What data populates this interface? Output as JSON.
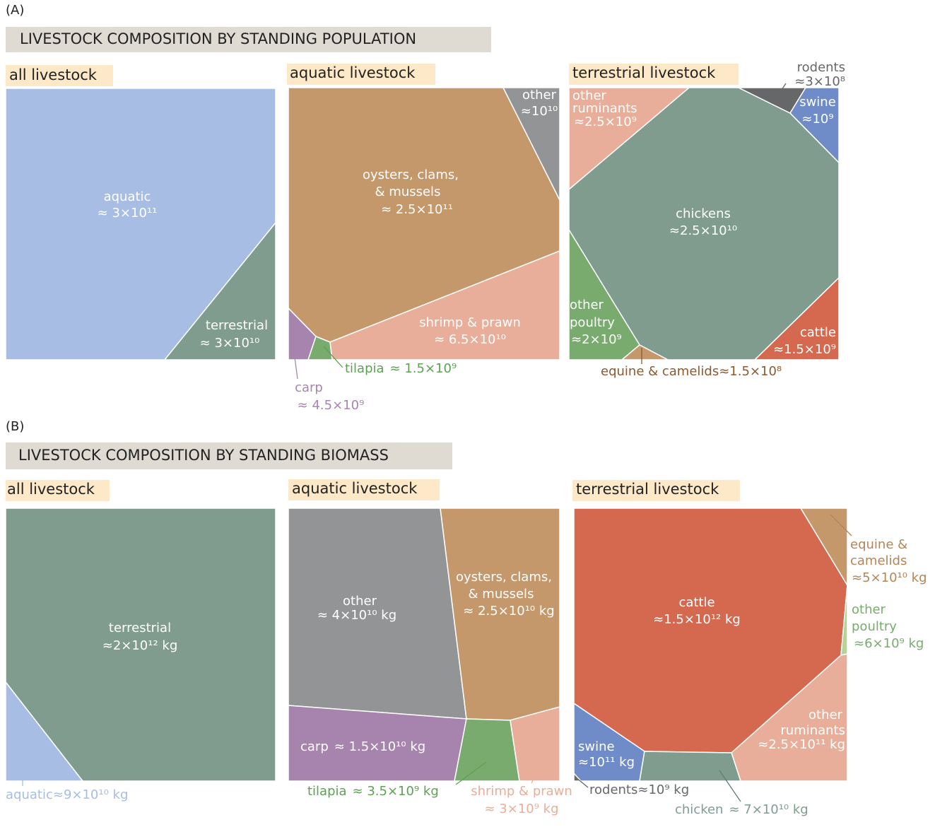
{
  "panels": [
    {
      "letter": "(A)",
      "title": "LIVESTOCK COMPOSITION BY STANDING POPULATION",
      "groups": [
        {
          "title": "all livestock",
          "cells": [
            {
              "name": [
                "aquatic"
              ],
              "value": "≈ 3×10¹¹"
            },
            {
              "name": [
                "terrestrial"
              ],
              "value": "≈ 3×10¹⁰"
            }
          ]
        },
        {
          "title": "aquatic livestock",
          "cells": [
            {
              "name": [
                "oysters, clams,",
                "& mussels"
              ],
              "value": "≈ 2.5×10¹¹"
            },
            {
              "name": [
                "other"
              ],
              "value": "≈10¹⁰"
            },
            {
              "name": [
                "shrimp & prawn"
              ],
              "value": "≈ 6.5×10¹⁰"
            },
            {
              "name": [
                "carp"
              ],
              "value": "≈ 4.5×10⁹"
            },
            {
              "name": [
                "tilapia"
              ],
              "value": "≈ 1.5×10⁹"
            }
          ]
        },
        {
          "title": "terrestrial livestock",
          "cells": [
            {
              "name": [
                "chickens"
              ],
              "value": "≈2.5×10¹⁰"
            },
            {
              "name": [
                "other",
                "ruminants"
              ],
              "value": "≈2.5×10⁹"
            },
            {
              "name": [
                "rodents"
              ],
              "value": "≈3×10⁸"
            },
            {
              "name": [
                "swine"
              ],
              "value": "≈10⁹"
            },
            {
              "name": [
                "other",
                "poultry"
              ],
              "value": "≈2×10⁹"
            },
            {
              "name": [
                "cattle"
              ],
              "value": "≈1.5×10⁹"
            },
            {
              "name": [
                "equine & camelids"
              ],
              "value": "≈1.5×10⁸"
            }
          ]
        }
      ]
    },
    {
      "letter": "(B)",
      "title": "LIVESTOCK COMPOSITION BY STANDING BIOMASS",
      "groups": [
        {
          "title": "all livestock",
          "cells": [
            {
              "name": [
                "terrestrial"
              ],
              "value": "≈2×10¹² kg"
            },
            {
              "name": [
                "aquatic"
              ],
              "value": "≈9×10¹⁰ kg"
            }
          ]
        },
        {
          "title": "aquatic livestock",
          "cells": [
            {
              "name": [
                "other"
              ],
              "value": "≈ 4×10¹⁰ kg"
            },
            {
              "name": [
                "oysters, clams,",
                "& mussels"
              ],
              "value": "≈ 2.5×10¹⁰ kg"
            },
            {
              "name": [
                "carp"
              ],
              "value": "≈ 1.5×10¹⁰ kg"
            },
            {
              "name": [
                "tilapia"
              ],
              "value": "≈ 3.5×10⁹ kg"
            },
            {
              "name": [
                "shrimp & prawn"
              ],
              "value": "≈ 3×10⁹ kg"
            }
          ]
        },
        {
          "title": "terrestrial livestock",
          "cells": [
            {
              "name": [
                "cattle"
              ],
              "value": "≈1.5×10¹² kg"
            },
            {
              "name": [
                "equine &",
                "camelids"
              ],
              "value": "≈5×10¹⁰ kg"
            },
            {
              "name": [
                "other",
                "poultry"
              ],
              "value": "≈6×10⁹ kg"
            },
            {
              "name": [
                "other",
                "ruminants"
              ],
              "value": "≈2.5×10¹¹ kg"
            },
            {
              "name": [
                "swine"
              ],
              "value": "≈10¹¹ kg"
            },
            {
              "name": [
                "rodents"
              ],
              "value": "≈10⁹ kg"
            },
            {
              "name": [
                "chicken"
              ],
              "value": "≈ 7×10¹⁰ kg"
            }
          ]
        }
      ]
    }
  ]
}
